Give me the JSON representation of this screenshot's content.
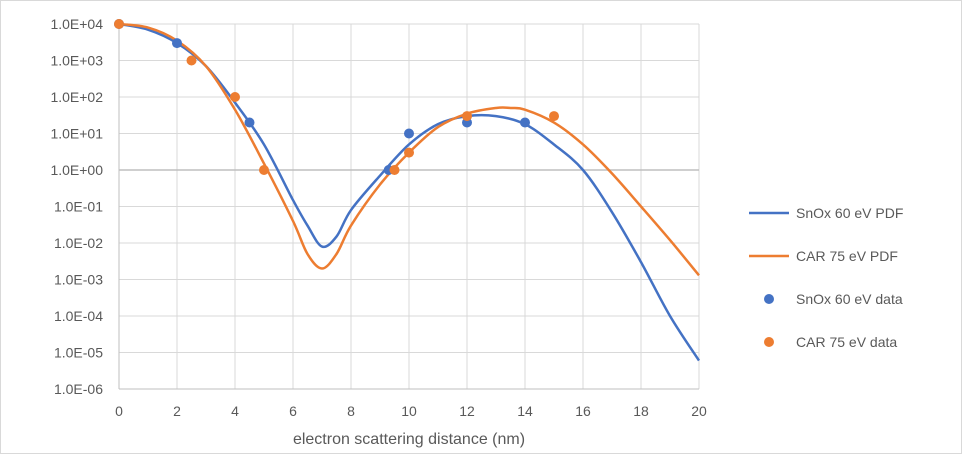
{
  "chart_data": {
    "type": "scatter",
    "xlabel": "electron scattering distance (nm)",
    "ylabel": "",
    "x_scale": "linear",
    "y_scale": "log",
    "xlim": [
      0,
      20
    ],
    "ylim": [
      1e-06,
      10000.0
    ],
    "x_ticks": [
      0,
      2,
      4,
      6,
      8,
      10,
      12,
      14,
      16,
      18,
      20
    ],
    "x_tick_labels": [
      "0",
      "2",
      "4",
      "6",
      "8",
      "10",
      "12",
      "14",
      "16",
      "18",
      "20"
    ],
    "y_ticks": [
      10000.0,
      1000.0,
      100.0,
      10.0,
      1,
      0.1,
      0.01,
      0.001,
      0.0001,
      1e-05,
      1e-06
    ],
    "y_tick_labels": [
      "1.0E+04",
      "1.0E+03",
      "1.0E+02",
      "1.0E+01",
      "1.0E+00",
      "1.0E-01",
      "1.0E-02",
      "1.0E-03",
      "1.0E-04",
      "1.0E-05",
      "1.0E-06"
    ],
    "grid": true,
    "legend_position": "right",
    "series": [
      {
        "name": "SnOx 60 eV PDF",
        "kind": "line",
        "color": "#4472c4",
        "x": [
          0,
          1,
          2,
          3,
          4,
          5,
          6,
          6.5,
          7,
          7.5,
          8,
          9,
          10,
          11,
          12,
          13,
          14,
          15,
          16,
          17,
          18,
          19,
          20
        ],
        "y": [
          10000,
          7000,
          3000,
          700,
          70,
          5,
          0.15,
          0.03,
          0.008,
          0.015,
          0.08,
          0.7,
          5,
          18,
          30,
          30,
          18,
          5,
          1,
          0.07,
          0.003,
          0.0001,
          6e-06
        ]
      },
      {
        "name": "CAR 75 eV PDF",
        "kind": "line",
        "color": "#ed7d31",
        "x": [
          0,
          1,
          2,
          3,
          4,
          5,
          6,
          6.5,
          7,
          7.5,
          8,
          9,
          10,
          11,
          12,
          13,
          13.5,
          14,
          15,
          16,
          17,
          18,
          19,
          20
        ],
        "y": [
          10000,
          8000,
          3500,
          700,
          45,
          1.5,
          0.04,
          0.005,
          0.002,
          0.005,
          0.03,
          0.4,
          3,
          15,
          35,
          50,
          50,
          45,
          20,
          5,
          0.8,
          0.1,
          0.012,
          0.0013
        ]
      },
      {
        "name": "SnOx 60 eV data",
        "kind": "scatter",
        "color": "#4472c4",
        "x": [
          0,
          2,
          4.5,
          9.3,
          10,
          12,
          14
        ],
        "y": [
          10000,
          3000,
          20,
          1,
          10,
          20,
          20
        ]
      },
      {
        "name": "CAR 75 eV data",
        "kind": "scatter",
        "color": "#ed7d31",
        "x": [
          0,
          2.5,
          4,
          5,
          9.5,
          10,
          12,
          15
        ],
        "y": [
          10000,
          1000,
          100,
          1,
          1,
          3,
          30,
          30
        ]
      }
    ]
  }
}
